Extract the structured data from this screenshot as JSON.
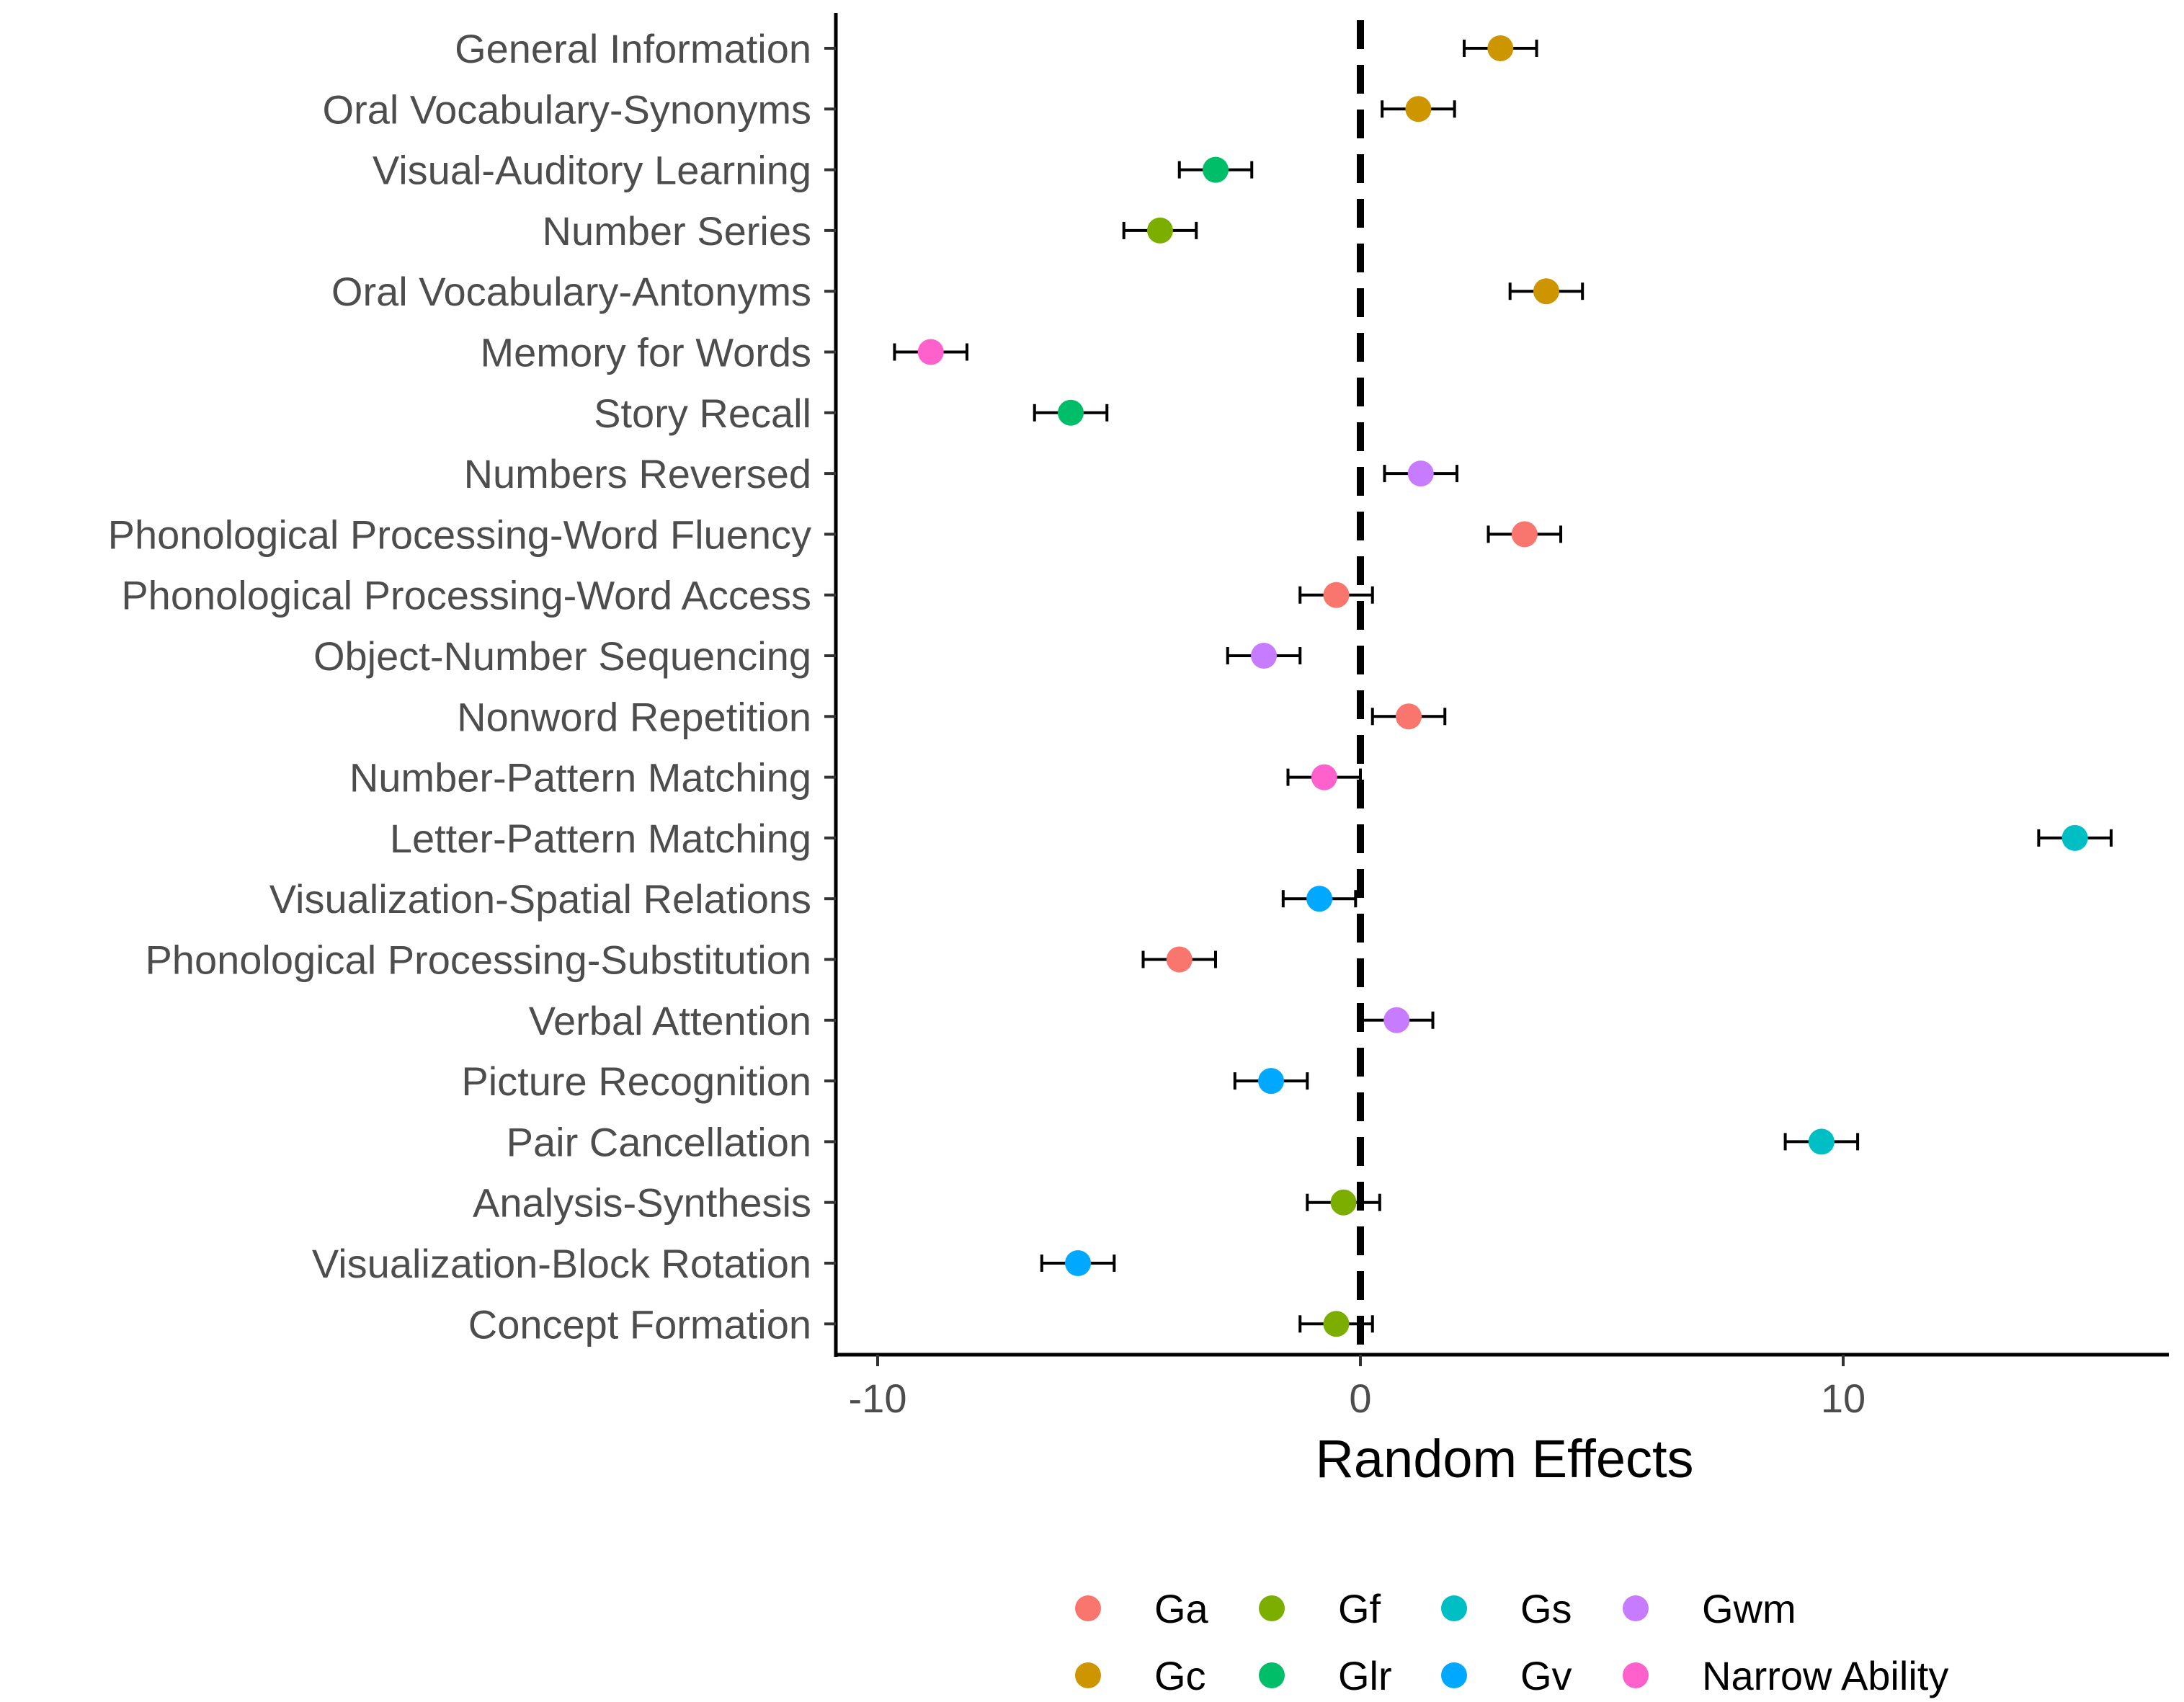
{
  "chart_data": {
    "type": "scatter",
    "subtype": "dot-plot-with-error-bars",
    "title": "",
    "xlabel": "Random Effects",
    "ylabel": "",
    "xlim": [
      -11.0,
      16.5
    ],
    "x_ticks": [
      -10,
      0,
      10
    ],
    "x_tick_labels": [
      "-10",
      "0",
      "10"
    ],
    "reference_line": {
      "x": 0,
      "style": "dashed",
      "color": "#000000"
    },
    "grid": false,
    "colors": {
      "Ga": "#F8766D",
      "Gc": "#CD9600",
      "Gf": "#7CAE00",
      "Glr": "#00BE67",
      "Gs": "#00BFC4",
      "Gv": "#00A9FF",
      "Gwm": "#C77CFF",
      "Narrow Ability": "#FF61CC"
    },
    "legend": {
      "position": "bottom",
      "entries": [
        "Ga",
        "Gc",
        "Gf",
        "Glr",
        "Gs",
        "Gv",
        "Gwm",
        "Narrow Ability"
      ],
      "layout_order": [
        [
          "Ga",
          "Gf",
          "Gs",
          "Gwm"
        ],
        [
          "Gc",
          "Glr",
          "Gv",
          "Narrow Ability"
        ]
      ]
    },
    "points": [
      {
        "label": "General Information",
        "group": "Gc",
        "x": 2.9,
        "lo": 2.15,
        "hi": 3.65
      },
      {
        "label": "Oral Vocabulary-Synonyms",
        "group": "Gc",
        "x": 1.2,
        "lo": 0.45,
        "hi": 1.95
      },
      {
        "label": "Visual-Auditory Learning",
        "group": "Glr",
        "x": -3.0,
        "lo": -3.75,
        "hi": -2.25
      },
      {
        "label": "Number Series",
        "group": "Gf",
        "x": -4.15,
        "lo": -4.9,
        "hi": -3.4
      },
      {
        "label": "Oral Vocabulary-Antonyms",
        "group": "Gc",
        "x": 3.85,
        "lo": 3.1,
        "hi": 4.6
      },
      {
        "label": "Memory for Words",
        "group": "Narrow Ability",
        "x": -8.9,
        "lo": -9.65,
        "hi": -8.15
      },
      {
        "label": "Story Recall",
        "group": "Glr",
        "x": -6.0,
        "lo": -6.75,
        "hi": -5.25
      },
      {
        "label": "Numbers Reversed",
        "group": "Gwm",
        "x": 1.25,
        "lo": 0.5,
        "hi": 2.0
      },
      {
        "label": "Phonological Processing-Word Fluency",
        "group": "Ga",
        "x": 3.4,
        "lo": 2.65,
        "hi": 4.15
      },
      {
        "label": "Phonological Processing-Word Access",
        "group": "Ga",
        "x": -0.5,
        "lo": -1.25,
        "hi": 0.25
      },
      {
        "label": "Object-Number Sequencing",
        "group": "Gwm",
        "x": -2.0,
        "lo": -2.75,
        "hi": -1.25
      },
      {
        "label": "Nonword Repetition",
        "group": "Ga",
        "x": 1.0,
        "lo": 0.25,
        "hi": 1.75
      },
      {
        "label": "Number-Pattern Matching",
        "group": "Narrow Ability",
        "x": -0.75,
        "lo": -1.5,
        "hi": 0.0
      },
      {
        "label": "Letter-Pattern Matching",
        "group": "Gs",
        "x": 14.8,
        "lo": 14.05,
        "hi": 15.55
      },
      {
        "label": "Visualization-Spatial Relations",
        "group": "Gv",
        "x": -0.85,
        "lo": -1.6,
        "hi": -0.1
      },
      {
        "label": "Phonological Processing-Substitution",
        "group": "Ga",
        "x": -3.75,
        "lo": -4.5,
        "hi": -3.0
      },
      {
        "label": "Verbal Attention",
        "group": "Gwm",
        "x": 0.75,
        "lo": 0.0,
        "hi": 1.5
      },
      {
        "label": "Picture Recognition",
        "group": "Gv",
        "x": -1.85,
        "lo": -2.6,
        "hi": -1.1
      },
      {
        "label": "Pair Cancellation",
        "group": "Gs",
        "x": 9.55,
        "lo": 8.8,
        "hi": 10.3
      },
      {
        "label": "Analysis-Synthesis",
        "group": "Gf",
        "x": -0.35,
        "lo": -1.1,
        "hi": 0.4
      },
      {
        "label": "Visualization-Block Rotation",
        "group": "Gv",
        "x": -5.85,
        "lo": -6.6,
        "hi": -5.1
      },
      {
        "label": "Concept Formation",
        "group": "Gf",
        "x": -0.5,
        "lo": -1.25,
        "hi": 0.25
      }
    ]
  }
}
